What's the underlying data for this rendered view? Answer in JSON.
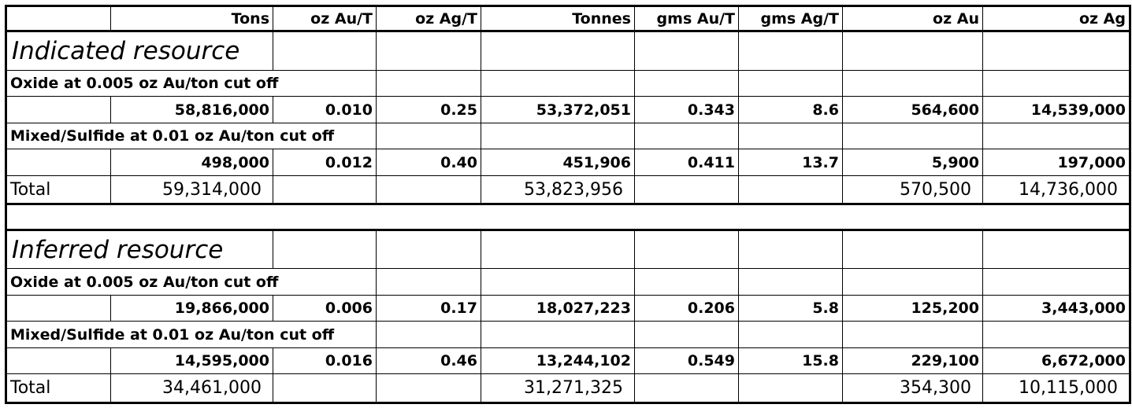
{
  "headers": [
    "",
    "Tons",
    "oz Au/T",
    "oz Ag/T",
    "Tonnes",
    "gms Au/T",
    "gms Ag/T",
    "oz Au",
    "oz Ag"
  ],
  "indicated": {
    "title": "Indicated resource",
    "oxide_label": "Oxide at 0.005 oz Au/ton cut off",
    "oxide_row": [
      "58,816,000",
      "0.010",
      "0.25",
      "53,372,051",
      "0.343",
      "8.6",
      "564,600",
      "14,539,000"
    ],
    "mixed_label": "Mixed/Sulfide at 0.01 oz Au/ton cut off",
    "mixed_row": [
      "498,000",
      "0.012",
      "0.40",
      "451,906",
      "0.411",
      "13.7",
      "5,900",
      "197,000"
    ],
    "total_label": "Total",
    "total_tons": "59,314,000",
    "total_tonnes": "53,823,956",
    "total_oz_au": "570,500",
    "total_oz_ag": "14,736,000"
  },
  "inferred": {
    "title": "Inferred resource",
    "oxide_label": "Oxide at 0.005 oz Au/ton cut off",
    "oxide_row": [
      "19,866,000",
      "0.006",
      "0.17",
      "18,027,223",
      "0.206",
      "5.8",
      "125,200",
      "3,443,000"
    ],
    "mixed_label": "Mixed/Sulfide at 0.01 oz Au/ton cut off",
    "mixed_row": [
      "14,595,000",
      "0.016",
      "0.46",
      "13,244,102",
      "0.549",
      "15.8",
      "229,100",
      "6,672,000"
    ],
    "total_label": "Total",
    "total_tons": "34,461,000",
    "total_tonnes": "31,271,325",
    "total_oz_au": "354,300",
    "total_oz_ag": "10,115,000"
  }
}
